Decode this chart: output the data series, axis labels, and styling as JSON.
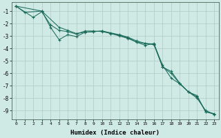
{
  "title": "",
  "xlabel": "Humidex (Indice chaleur)",
  "ylabel": "",
  "background_color": "#cfe9e5",
  "grid_color": "#b0c8c4",
  "line_color": "#1a6b5a",
  "xlim": [
    -0.5,
    23.5
  ],
  "ylim": [
    -9.7,
    -0.3
  ],
  "yticks": [
    -1,
    -2,
    -3,
    -4,
    -5,
    -6,
    -7,
    -8,
    -9
  ],
  "xticks": [
    0,
    1,
    2,
    3,
    4,
    5,
    6,
    7,
    8,
    9,
    10,
    11,
    12,
    13,
    14,
    15,
    16,
    17,
    18,
    19,
    20,
    21,
    22,
    23
  ],
  "series1": [
    [
      0,
      -0.6
    ],
    [
      1,
      -1.1
    ],
    [
      3,
      -1.0
    ],
    [
      4,
      -2.3
    ],
    [
      5,
      -3.3
    ],
    [
      6,
      -2.9
    ],
    [
      7,
      -3.05
    ],
    [
      8,
      -2.7
    ],
    [
      9,
      -2.65
    ],
    [
      10,
      -2.6
    ],
    [
      11,
      -2.8
    ],
    [
      12,
      -3.0
    ],
    [
      13,
      -3.2
    ],
    [
      14,
      -3.5
    ],
    [
      15,
      -3.75
    ],
    [
      16,
      -3.6
    ],
    [
      17,
      -5.5
    ],
    [
      18,
      -5.85
    ],
    [
      19,
      -6.8
    ],
    [
      20,
      -7.5
    ],
    [
      21,
      -7.8
    ],
    [
      22,
      -9.1
    ],
    [
      23,
      -9.25
    ]
  ],
  "series2": [
    [
      0,
      -0.6
    ],
    [
      3,
      -1.0
    ],
    [
      5,
      -2.3
    ],
    [
      6,
      -2.55
    ],
    [
      7,
      -2.8
    ],
    [
      8,
      -2.7
    ],
    [
      9,
      -2.65
    ],
    [
      10,
      -2.6
    ],
    [
      11,
      -2.75
    ],
    [
      12,
      -2.9
    ],
    [
      13,
      -3.1
    ],
    [
      14,
      -3.4
    ],
    [
      15,
      -3.6
    ],
    [
      16,
      -3.7
    ],
    [
      17,
      -5.5
    ],
    [
      18,
      -6.0
    ],
    [
      19,
      -6.85
    ],
    [
      20,
      -7.5
    ],
    [
      21,
      -7.9
    ],
    [
      22,
      -9.1
    ],
    [
      23,
      -9.3
    ]
  ],
  "series3": [
    [
      0,
      -0.6
    ],
    [
      2,
      -1.5
    ],
    [
      3,
      -1.05
    ],
    [
      4,
      -2.1
    ],
    [
      5,
      -2.55
    ],
    [
      6,
      -2.65
    ],
    [
      7,
      -2.85
    ],
    [
      8,
      -2.6
    ],
    [
      9,
      -2.6
    ],
    [
      10,
      -2.65
    ],
    [
      11,
      -2.8
    ],
    [
      12,
      -2.95
    ],
    [
      13,
      -3.15
    ],
    [
      14,
      -3.5
    ],
    [
      15,
      -3.6
    ],
    [
      16,
      -3.65
    ],
    [
      17,
      -5.35
    ],
    [
      18,
      -6.4
    ],
    [
      19,
      -6.85
    ],
    [
      20,
      -7.5
    ],
    [
      21,
      -8.0
    ],
    [
      22,
      -9.0
    ],
    [
      23,
      -9.3
    ]
  ]
}
